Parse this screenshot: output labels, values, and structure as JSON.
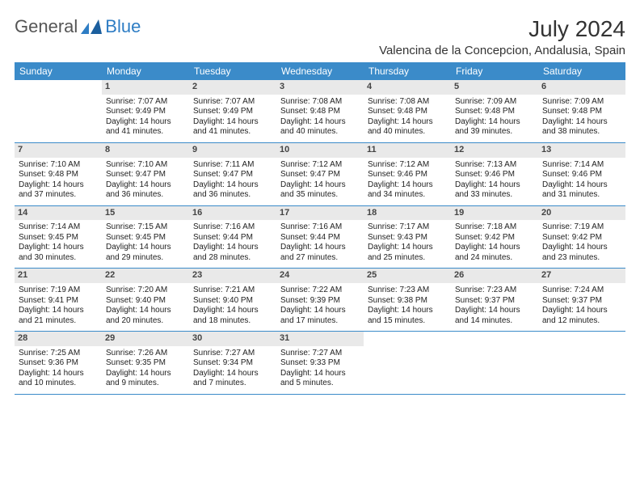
{
  "brand": {
    "name1": "General",
    "name2": "Blue"
  },
  "title": "July 2024",
  "location": "Valencina de la Concepcion, Andalusia, Spain",
  "colors": {
    "header_bg": "#3b8bc9",
    "header_fg": "#ffffff",
    "daynum_bg": "#e9e9e9",
    "row_border": "#3b8bc9",
    "brand_accent": "#2e7dc4"
  },
  "weekdays": [
    "Sunday",
    "Monday",
    "Tuesday",
    "Wednesday",
    "Thursday",
    "Friday",
    "Saturday"
  ],
  "weeks": [
    [
      {
        "empty": true
      },
      {
        "n": "1",
        "sr": "7:07 AM",
        "ss": "9:49 PM",
        "dl": "14 hours and 41 minutes."
      },
      {
        "n": "2",
        "sr": "7:07 AM",
        "ss": "9:49 PM",
        "dl": "14 hours and 41 minutes."
      },
      {
        "n": "3",
        "sr": "7:08 AM",
        "ss": "9:48 PM",
        "dl": "14 hours and 40 minutes."
      },
      {
        "n": "4",
        "sr": "7:08 AM",
        "ss": "9:48 PM",
        "dl": "14 hours and 40 minutes."
      },
      {
        "n": "5",
        "sr": "7:09 AM",
        "ss": "9:48 PM",
        "dl": "14 hours and 39 minutes."
      },
      {
        "n": "6",
        "sr": "7:09 AM",
        "ss": "9:48 PM",
        "dl": "14 hours and 38 minutes."
      }
    ],
    [
      {
        "n": "7",
        "sr": "7:10 AM",
        "ss": "9:48 PM",
        "dl": "14 hours and 37 minutes."
      },
      {
        "n": "8",
        "sr": "7:10 AM",
        "ss": "9:47 PM",
        "dl": "14 hours and 36 minutes."
      },
      {
        "n": "9",
        "sr": "7:11 AM",
        "ss": "9:47 PM",
        "dl": "14 hours and 36 minutes."
      },
      {
        "n": "10",
        "sr": "7:12 AM",
        "ss": "9:47 PM",
        "dl": "14 hours and 35 minutes."
      },
      {
        "n": "11",
        "sr": "7:12 AM",
        "ss": "9:46 PM",
        "dl": "14 hours and 34 minutes."
      },
      {
        "n": "12",
        "sr": "7:13 AM",
        "ss": "9:46 PM",
        "dl": "14 hours and 33 minutes."
      },
      {
        "n": "13",
        "sr": "7:14 AM",
        "ss": "9:46 PM",
        "dl": "14 hours and 31 minutes."
      }
    ],
    [
      {
        "n": "14",
        "sr": "7:14 AM",
        "ss": "9:45 PM",
        "dl": "14 hours and 30 minutes."
      },
      {
        "n": "15",
        "sr": "7:15 AM",
        "ss": "9:45 PM",
        "dl": "14 hours and 29 minutes."
      },
      {
        "n": "16",
        "sr": "7:16 AM",
        "ss": "9:44 PM",
        "dl": "14 hours and 28 minutes."
      },
      {
        "n": "17",
        "sr": "7:16 AM",
        "ss": "9:44 PM",
        "dl": "14 hours and 27 minutes."
      },
      {
        "n": "18",
        "sr": "7:17 AM",
        "ss": "9:43 PM",
        "dl": "14 hours and 25 minutes."
      },
      {
        "n": "19",
        "sr": "7:18 AM",
        "ss": "9:42 PM",
        "dl": "14 hours and 24 minutes."
      },
      {
        "n": "20",
        "sr": "7:19 AM",
        "ss": "9:42 PM",
        "dl": "14 hours and 23 minutes."
      }
    ],
    [
      {
        "n": "21",
        "sr": "7:19 AM",
        "ss": "9:41 PM",
        "dl": "14 hours and 21 minutes."
      },
      {
        "n": "22",
        "sr": "7:20 AM",
        "ss": "9:40 PM",
        "dl": "14 hours and 20 minutes."
      },
      {
        "n": "23",
        "sr": "7:21 AM",
        "ss": "9:40 PM",
        "dl": "14 hours and 18 minutes."
      },
      {
        "n": "24",
        "sr": "7:22 AM",
        "ss": "9:39 PM",
        "dl": "14 hours and 17 minutes."
      },
      {
        "n": "25",
        "sr": "7:23 AM",
        "ss": "9:38 PM",
        "dl": "14 hours and 15 minutes."
      },
      {
        "n": "26",
        "sr": "7:23 AM",
        "ss": "9:37 PM",
        "dl": "14 hours and 14 minutes."
      },
      {
        "n": "27",
        "sr": "7:24 AM",
        "ss": "9:37 PM",
        "dl": "14 hours and 12 minutes."
      }
    ],
    [
      {
        "n": "28",
        "sr": "7:25 AM",
        "ss": "9:36 PM",
        "dl": "14 hours and 10 minutes."
      },
      {
        "n": "29",
        "sr": "7:26 AM",
        "ss": "9:35 PM",
        "dl": "14 hours and 9 minutes."
      },
      {
        "n": "30",
        "sr": "7:27 AM",
        "ss": "9:34 PM",
        "dl": "14 hours and 7 minutes."
      },
      {
        "n": "31",
        "sr": "7:27 AM",
        "ss": "9:33 PM",
        "dl": "14 hours and 5 minutes."
      },
      {
        "empty": true
      },
      {
        "empty": true
      },
      {
        "empty": true
      }
    ]
  ],
  "labels": {
    "sunrise": "Sunrise:",
    "sunset": "Sunset:",
    "daylight": "Daylight:"
  }
}
